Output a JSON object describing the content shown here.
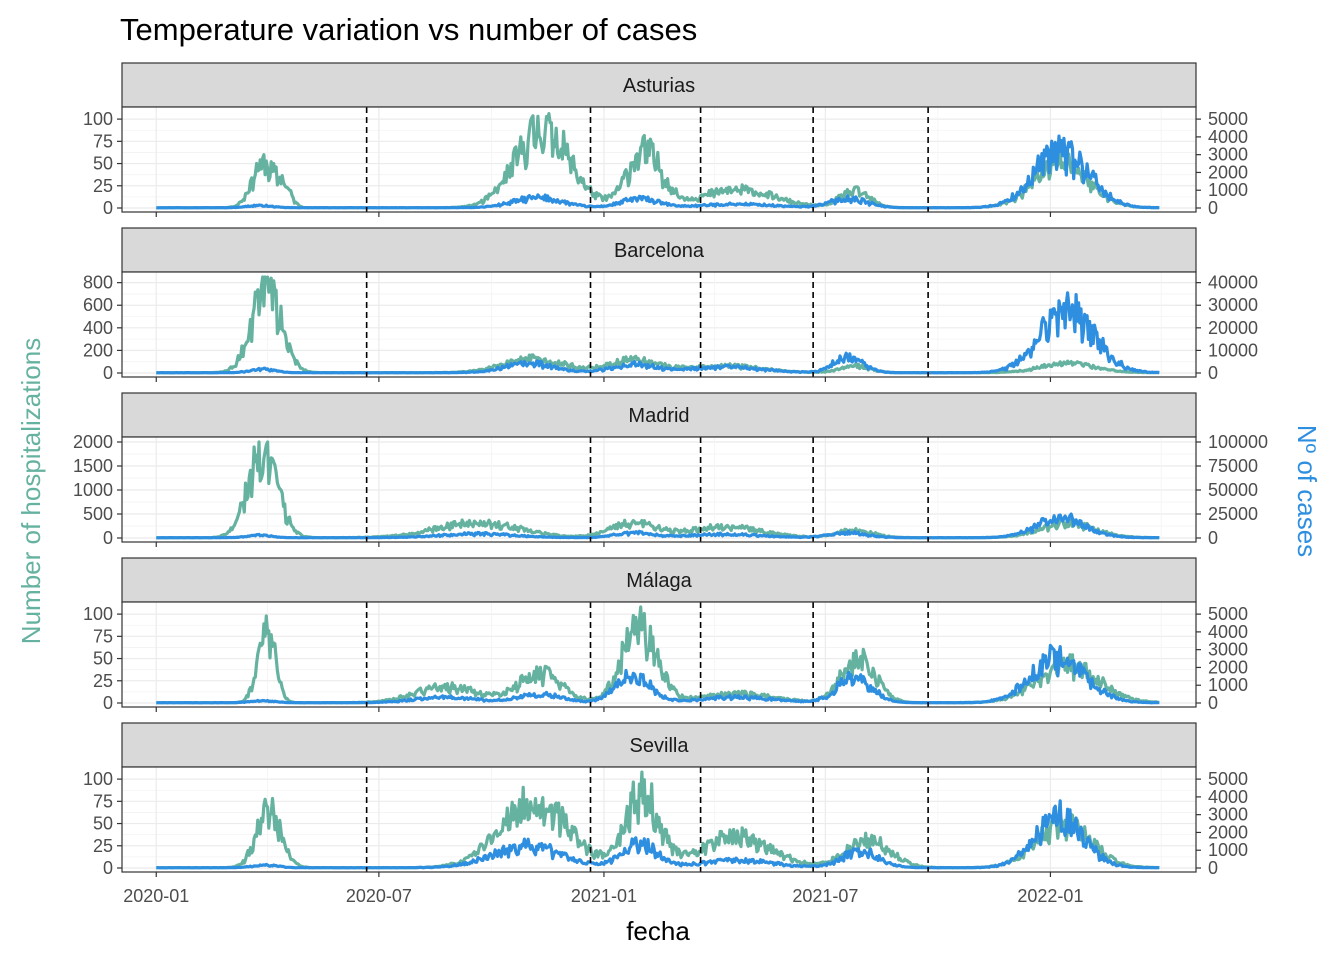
{
  "chart_data": {
    "type": "line",
    "title": "Temperature variation vs number of cases",
    "xlabel": "fecha",
    "ylabel_left": "Number of hospitalizations",
    "ylabel_right": "Nº of cases",
    "x_ticks": [
      "2020-01",
      "2020-07",
      "2021-01",
      "2021-07",
      "2022-01"
    ],
    "x_range": [
      "2019-12-04",
      "2022-04-30"
    ],
    "vlines_dashed": [
      "2020-06-21",
      "2020-12-21",
      "2021-03-21",
      "2021-06-21",
      "2021-09-23"
    ],
    "colors": {
      "hospitalizations": "#66b2a0",
      "cases": "#2e8fe0",
      "strip_bg": "#d9d9d9",
      "grid": "#ebebeb",
      "vline": "#000000"
    },
    "grid": true,
    "panels": [
      {
        "name": "Asturias",
        "left_ticks": [
          0,
          25,
          50,
          75,
          100
        ],
        "right_ticks": [
          0,
          1000,
          2000,
          3000,
          4000,
          5000
        ],
        "left_max": 108,
        "right_max": 5400,
        "hosp_waves": [
          {
            "date": "2020-03-28",
            "peak": 48,
            "width": 9
          },
          {
            "date": "2020-04-14",
            "peak": 22,
            "width": 6
          },
          {
            "date": "2020-11-12",
            "peak": 88,
            "width": 22
          },
          {
            "date": "2021-02-03",
            "peak": 62,
            "width": 14
          },
          {
            "date": "2021-04-20",
            "peak": 20,
            "width": 30
          },
          {
            "date": "2021-07-25",
            "peak": 18,
            "width": 12
          },
          {
            "date": "2022-01-10",
            "peak": 50,
            "width": 22
          }
        ],
        "cases_waves": [
          {
            "date": "2020-03-25",
            "peak": 120,
            "width": 10
          },
          {
            "date": "2020-11-08",
            "peak": 550,
            "width": 20
          },
          {
            "date": "2021-01-30",
            "peak": 500,
            "width": 15
          },
          {
            "date": "2021-04-20",
            "peak": 200,
            "width": 30
          },
          {
            "date": "2021-07-20",
            "peak": 500,
            "width": 15
          },
          {
            "date": "2022-01-10",
            "peak": 3100,
            "width": 22
          }
        ]
      },
      {
        "name": "Barcelona",
        "left_ticks": [
          0,
          200,
          400,
          600,
          800
        ],
        "right_ticks": [
          0,
          10000,
          20000,
          30000,
          40000
        ],
        "left_max": 850,
        "right_max": 42500,
        "hosp_waves": [
          {
            "date": "2020-03-31",
            "peak": 740,
            "width": 12
          },
          {
            "date": "2020-11-05",
            "peak": 120,
            "width": 25
          },
          {
            "date": "2021-01-25",
            "peak": 110,
            "width": 20
          },
          {
            "date": "2021-04-10",
            "peak": 60,
            "width": 30
          },
          {
            "date": "2021-07-25",
            "peak": 60,
            "width": 12
          },
          {
            "date": "2022-01-15",
            "peak": 80,
            "width": 22
          }
        ],
        "cases_waves": [
          {
            "date": "2020-03-28",
            "peak": 1500,
            "width": 10
          },
          {
            "date": "2020-11-01",
            "peak": 4000,
            "width": 20
          },
          {
            "date": "2021-01-25",
            "peak": 3500,
            "width": 18
          },
          {
            "date": "2021-04-10",
            "peak": 2500,
            "width": 30
          },
          {
            "date": "2021-07-20",
            "peak": 7000,
            "width": 12
          },
          {
            "date": "2022-01-15",
            "peak": 27000,
            "width": 22
          }
        ]
      },
      {
        "name": "Madrid",
        "left_ticks": [
          0,
          500,
          1000,
          1500,
          2000
        ],
        "right_ticks": [
          0,
          25000,
          50000,
          75000,
          100000
        ],
        "left_max": 2000,
        "right_max": 100000,
        "hosp_waves": [
          {
            "date": "2020-03-28",
            "peak": 1750,
            "width": 12
          },
          {
            "date": "2020-09-20",
            "peak": 300,
            "width": 35
          },
          {
            "date": "2021-01-25",
            "peak": 300,
            "width": 18
          },
          {
            "date": "2021-04-10",
            "peak": 220,
            "width": 30
          },
          {
            "date": "2021-07-25",
            "peak": 150,
            "width": 15
          },
          {
            "date": "2022-01-15",
            "peak": 300,
            "width": 22
          }
        ],
        "cases_waves": [
          {
            "date": "2020-03-25",
            "peak": 2500,
            "width": 10
          },
          {
            "date": "2020-09-20",
            "peak": 4000,
            "width": 30
          },
          {
            "date": "2021-01-25",
            "peak": 5000,
            "width": 15
          },
          {
            "date": "2021-04-10",
            "peak": 3500,
            "width": 30
          },
          {
            "date": "2021-07-20",
            "peak": 5000,
            "width": 15
          },
          {
            "date": "2022-01-10",
            "peak": 20000,
            "width": 20
          }
        ]
      },
      {
        "name": "Málaga",
        "left_ticks": [
          0,
          25,
          50,
          75,
          100
        ],
        "right_ticks": [
          0,
          1000,
          2000,
          3000,
          4000,
          5000
        ],
        "left_max": 108,
        "right_max": 5400,
        "hosp_waves": [
          {
            "date": "2020-03-31",
            "peak": 85,
            "width": 7
          },
          {
            "date": "2020-08-25",
            "peak": 18,
            "width": 25
          },
          {
            "date": "2020-11-10",
            "peak": 32,
            "width": 18
          },
          {
            "date": "2021-01-30",
            "peak": 85,
            "width": 14
          },
          {
            "date": "2021-04-20",
            "peak": 10,
            "width": 30
          },
          {
            "date": "2021-07-28",
            "peak": 48,
            "width": 14
          },
          {
            "date": "2022-01-15",
            "peak": 42,
            "width": 25
          }
        ],
        "cases_waves": [
          {
            "date": "2020-03-28",
            "peak": 100,
            "width": 10
          },
          {
            "date": "2020-08-25",
            "peak": 300,
            "width": 25
          },
          {
            "date": "2020-11-10",
            "peak": 450,
            "width": 18
          },
          {
            "date": "2021-01-25",
            "peak": 1500,
            "width": 14
          },
          {
            "date": "2021-04-20",
            "peak": 300,
            "width": 30
          },
          {
            "date": "2021-07-25",
            "peak": 1400,
            "width": 14
          },
          {
            "date": "2022-01-08",
            "peak": 2500,
            "width": 22
          }
        ]
      },
      {
        "name": "Sevilla",
        "left_ticks": [
          0,
          25,
          50,
          75,
          100
        ],
        "right_ticks": [
          0,
          1000,
          2000,
          3000,
          4000,
          5000
        ],
        "left_max": 108,
        "right_max": 5400,
        "hosp_waves": [
          {
            "date": "2020-04-02",
            "peak": 62,
            "width": 10
          },
          {
            "date": "2020-11-05",
            "peak": 72,
            "width": 28
          },
          {
            "date": "2021-02-01",
            "peak": 82,
            "width": 14
          },
          {
            "date": "2021-04-20",
            "peak": 35,
            "width": 28
          },
          {
            "date": "2021-08-05",
            "peak": 30,
            "width": 18
          },
          {
            "date": "2022-01-12",
            "peak": 50,
            "width": 22
          }
        ],
        "cases_waves": [
          {
            "date": "2020-03-30",
            "peak": 150,
            "width": 10
          },
          {
            "date": "2020-10-30",
            "peak": 1200,
            "width": 28
          },
          {
            "date": "2021-01-30",
            "peak": 1300,
            "width": 14
          },
          {
            "date": "2021-04-20",
            "peak": 400,
            "width": 30
          },
          {
            "date": "2021-07-30",
            "peak": 900,
            "width": 15
          },
          {
            "date": "2022-01-08",
            "peak": 2800,
            "width": 20
          }
        ]
      }
    ]
  }
}
